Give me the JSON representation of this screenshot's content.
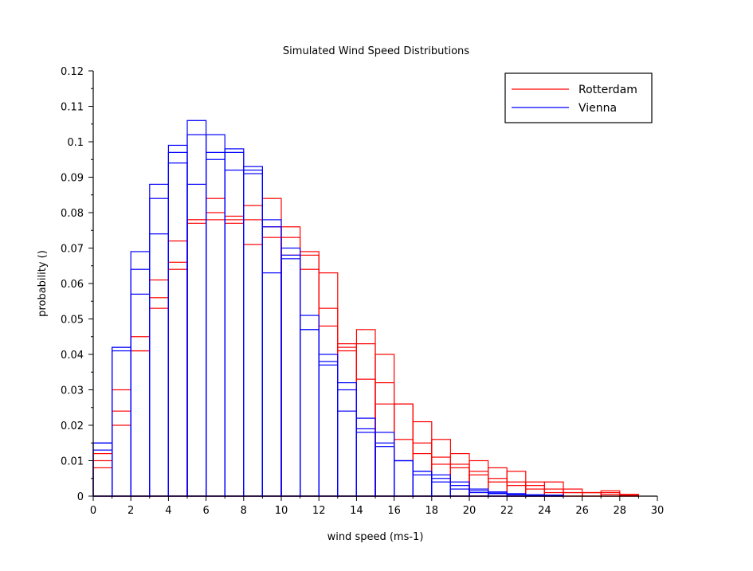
{
  "chart_data": {
    "type": "bar",
    "title": "Simulated Wind Speed Distributions",
    "xlabel": "wind speed (ms-1)",
    "ylabel": "probability ()",
    "xlim": [
      0,
      30
    ],
    "ylim": [
      0,
      0.12
    ],
    "x_ticks": [
      "0",
      "2",
      "4",
      "6",
      "8",
      "10",
      "12",
      "14",
      "16",
      "18",
      "20",
      "22",
      "24",
      "26",
      "28",
      "30"
    ],
    "y_ticks": [
      "0",
      "0.01",
      "0.02",
      "0.03",
      "0.04",
      "0.05",
      "0.06",
      "0.07",
      "0.08",
      "0.09",
      "0.1",
      "0.11",
      "0.12"
    ],
    "bin_edges": [
      0,
      1,
      2,
      3,
      4,
      5,
      6,
      7,
      8,
      9,
      10,
      11,
      12,
      13,
      14,
      15,
      16,
      17,
      18,
      19,
      20,
      21,
      22,
      23,
      24,
      25,
      26,
      27,
      28,
      29,
      30
    ],
    "grid": false,
    "legend_position": "top-right",
    "colors": {
      "Rotterdam": "#ff0000",
      "Vienna": "#0000ff"
    },
    "series": [
      {
        "name": "Rotterdam",
        "color": "#ff0000",
        "values": [
          0.008,
          0.02,
          0.041,
          0.053,
          0.064,
          0.077,
          0.078,
          0.077,
          0.071,
          0.073,
          0.068,
          0.064,
          0.048,
          0.042,
          0.033,
          0.026,
          0.016,
          0.012,
          0.009,
          0.008,
          0.006,
          0.004,
          0.003,
          0.002,
          0.001,
          0.001,
          0.001,
          0.0005,
          0.0002,
          0.0
        ]
      },
      {
        "name": "Rotterdam",
        "color": "#ff0000",
        "values": [
          0.01,
          0.024,
          0.041,
          0.056,
          0.066,
          0.078,
          0.08,
          0.078,
          0.078,
          0.076,
          0.073,
          0.068,
          0.053,
          0.041,
          0.043,
          0.032,
          0.026,
          0.015,
          0.011,
          0.009,
          0.007,
          0.005,
          0.004,
          0.003,
          0.002,
          0.001,
          0.001,
          0.001,
          0.0004,
          0.0
        ]
      },
      {
        "name": "Rotterdam",
        "color": "#ff0000",
        "values": [
          0.012,
          0.03,
          0.045,
          0.061,
          0.072,
          0.078,
          0.084,
          0.079,
          0.082,
          0.084,
          0.076,
          0.069,
          0.063,
          0.043,
          0.047,
          0.04,
          0.026,
          0.021,
          0.016,
          0.012,
          0.01,
          0.008,
          0.007,
          0.004,
          0.004,
          0.002,
          0.001,
          0.0015,
          0.0005,
          0.0
        ]
      },
      {
        "name": "Vienna",
        "color": "#0000ff",
        "values": [
          0.015,
          0.041,
          0.057,
          0.074,
          0.094,
          0.088,
          0.095,
          0.092,
          0.091,
          0.063,
          0.067,
          0.047,
          0.037,
          0.024,
          0.018,
          0.014,
          0.01,
          0.006,
          0.004,
          0.002,
          0.001,
          0.0007,
          0.0004,
          0.0002,
          0.0001,
          0.0,
          0.0,
          0.0,
          0.0,
          0.0
        ]
      },
      {
        "name": "Vienna",
        "color": "#0000ff",
        "values": [
          0.013,
          0.042,
          0.064,
          0.084,
          0.097,
          0.102,
          0.097,
          0.097,
          0.092,
          0.076,
          0.068,
          0.047,
          0.038,
          0.03,
          0.019,
          0.015,
          0.01,
          0.007,
          0.005,
          0.003,
          0.0015,
          0.0009,
          0.0005,
          0.0003,
          0.0002,
          0.0,
          0.0,
          0.0,
          0.0,
          0.0
        ]
      },
      {
        "name": "Vienna",
        "color": "#0000ff",
        "values": [
          0.015,
          0.042,
          0.069,
          0.088,
          0.099,
          0.106,
          0.102,
          0.098,
          0.093,
          0.078,
          0.07,
          0.051,
          0.04,
          0.032,
          0.022,
          0.018,
          0.01,
          0.007,
          0.006,
          0.004,
          0.002,
          0.0012,
          0.0007,
          0.0004,
          0.0003,
          0.0,
          0.0,
          0.0,
          0.0,
          0.0
        ]
      }
    ]
  }
}
